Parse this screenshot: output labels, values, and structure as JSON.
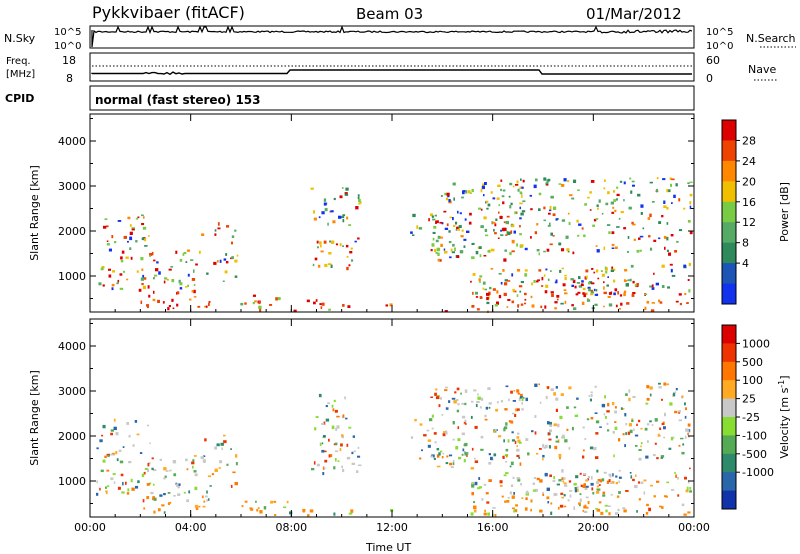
{
  "header": {
    "radar": "Pykkvibaer (fitACF)",
    "beam": "Beam 03",
    "date": "01/Mar/2012"
  },
  "noise_panel": {
    "left_label": "N.Sky",
    "right_label": "N.Search",
    "left_top": "10^5",
    "left_bottom": "10^0",
    "right_top": "10^5",
    "right_bottom": "10^0"
  },
  "freq_panel": {
    "left_label_1": "Freq.",
    "left_label_2": "[MHz]",
    "right_label": "Nave",
    "left_top": "18",
    "left_bottom": "8",
    "right_top": "60",
    "right_bottom": "0"
  },
  "cpid": {
    "label": "CPID",
    "value": "normal (fast stereo) 153"
  },
  "chart_data": [
    {
      "type": "heatmap",
      "name": "power",
      "ylabel": "Slant Range [km]",
      "xlabel": "",
      "x_ticks": [
        "00:00",
        "04:00",
        "08:00",
        "12:00",
        "16:00",
        "20:00",
        "00:00"
      ],
      "y_ticks": [
        "1000",
        "2000",
        "3000",
        "4000"
      ],
      "ylim": [
        200,
        4600
      ],
      "colorbar": {
        "label": "Power [dB]",
        "ticks": [
          "28",
          "24",
          "20",
          "16",
          "12",
          "8",
          "4"
        ],
        "colors": [
          "#1133ee",
          "#1c55b6",
          "#2e8a5a",
          "#55aa66",
          "#77cc44",
          "#f0c000",
          "#ff8800",
          "#ee4400",
          "#dd0000"
        ]
      }
    },
    {
      "type": "heatmap",
      "name": "velocity",
      "ylabel": "Slant Range [km]",
      "xlabel": "Time UT",
      "x_ticks": [
        "00:00",
        "04:00",
        "08:00",
        "12:00",
        "16:00",
        "20:00",
        "00:00"
      ],
      "y_ticks": [
        "1000",
        "2000",
        "3000",
        "4000"
      ],
      "ylim": [
        200,
        4600
      ],
      "colorbar": {
        "label": "Velocity  [m s",
        "label_sup": "-1",
        "label_end": "]",
        "ticks": [
          "1000",
          "500",
          "100",
          "25",
          "-25",
          "-100",
          "-500",
          "-1000"
        ],
        "colors": [
          "#1133aa",
          "#2a66aa",
          "#2e8a6a",
          "#55aa55",
          "#88dd33",
          "#c8c8c8",
          "#ffaa22",
          "#ff7700",
          "#ee3300",
          "#dd0000"
        ]
      }
    }
  ]
}
